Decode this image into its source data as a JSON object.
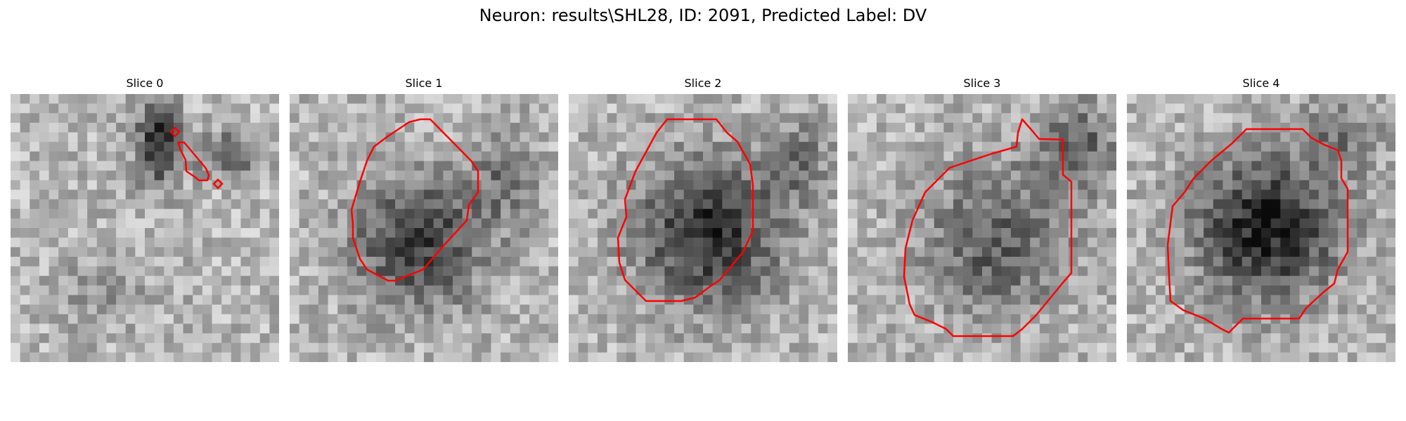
{
  "figure": {
    "title": "Neuron: results\\SHL28, ID: 2091, Predicted Label: DV"
  },
  "slices": [
    {
      "title": "Slice 0"
    },
    {
      "title": "Slice 1"
    },
    {
      "title": "Slice 2"
    },
    {
      "title": "Slice 3"
    },
    {
      "title": "Slice 4"
    }
  ],
  "colors": {
    "contour": "#ff0000",
    "background": "#ffffff"
  }
}
